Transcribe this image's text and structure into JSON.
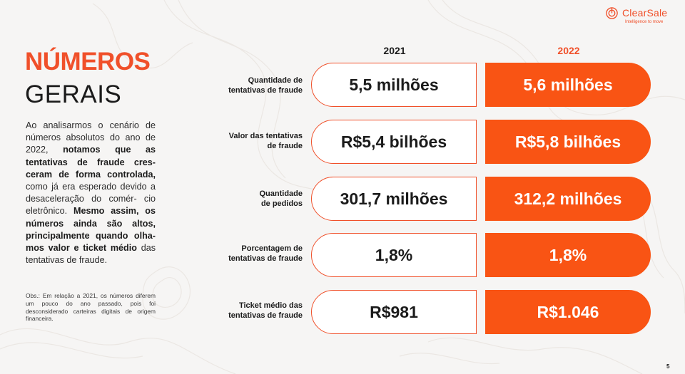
{
  "brand": {
    "name": "ClearSale",
    "tagline": "Intelligence to move",
    "accent": "#f0502a",
    "fill": "#f95414"
  },
  "title": {
    "line1": "NÚMEROS",
    "line2": "GERAIS"
  },
  "body": {
    "p1": "Ao analisarmos o cenário de números absolutos do ano de 2022,",
    "b1": "notamos que as tentativas de fraude cres- ceram de forma controlada,",
    "p2": "como já era esperado devido a desaceleração do comér- cio eletrônico.",
    "b2": "Mesmo assim, os números ainda são altos, principalmente quando olha- mos valor e ticket médio",
    "p3": "das tentativas de fraude."
  },
  "obs": "Obs.: Em relação a 2021, os números diferem um pouco do ano passado, pois foi desconsiderado carteiras digitais de origem financeira.",
  "table": {
    "year_a": "2021",
    "year_b": "2022",
    "rows": [
      {
        "label_1": "Quantidade de",
        "label_2": "tentativas de fraude",
        "v2021": "5,5 milhões",
        "v2022": "5,6 milhões"
      },
      {
        "label_1": "Valor das tentativas",
        "label_2": "de fraude",
        "v2021": "R$5,4 bilhões",
        "v2022": "R$5,8 bilhões"
      },
      {
        "label_1": "Quantidade",
        "label_2": "de pedidos",
        "v2021": "301,7 milhões",
        "v2022": "312,2 milhões"
      },
      {
        "label_1": "Porcentagem de",
        "label_2": "tentativas de fraude",
        "v2021": "1,8%",
        "v2022": "1,8%"
      },
      {
        "label_1": "Ticket médio das",
        "label_2": "tentativas de fraude",
        "v2021": "R$981",
        "v2022": "R$1.046"
      }
    ]
  },
  "page_number": "5"
}
